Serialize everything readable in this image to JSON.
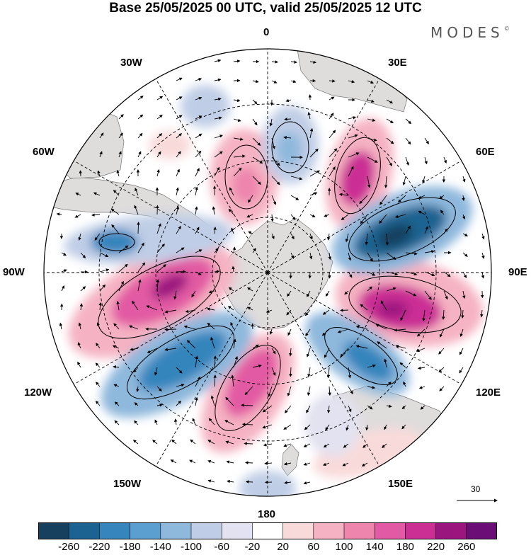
{
  "title": "Base 25/05/2025 00 UTC, valid 25/05/2025 12 UTC",
  "brand": "MODES",
  "brand_mark": "©",
  "lon_labels": {
    "n0": "0",
    "e30": "30E",
    "e60": "60E",
    "e90": "90E",
    "e120": "120E",
    "e150": "150E",
    "s180": "180",
    "w150": "150W",
    "w120": "120W",
    "w90": "90W",
    "w60": "60W",
    "w30": "30W"
  },
  "vector_reference": {
    "value": "30"
  },
  "colorbar": {
    "colors": [
      "#17405e",
      "#1c6391",
      "#3685bd",
      "#5a9fd0",
      "#8eb8dc",
      "#bfcde6",
      "#e2e2f0",
      "#ffffff",
      "#f9dada",
      "#f5b2c2",
      "#ee85ad",
      "#e25aa3",
      "#cb2f94",
      "#9b157f",
      "#6b0e75"
    ],
    "ticks": [
      "-260",
      "-220",
      "-180",
      "-140",
      "-100",
      "-60",
      "-20",
      "20",
      "60",
      "100",
      "140",
      "180",
      "220",
      "260"
    ]
  },
  "colors": {
    "land": "#dfdcdc",
    "grid": "#000000"
  }
}
